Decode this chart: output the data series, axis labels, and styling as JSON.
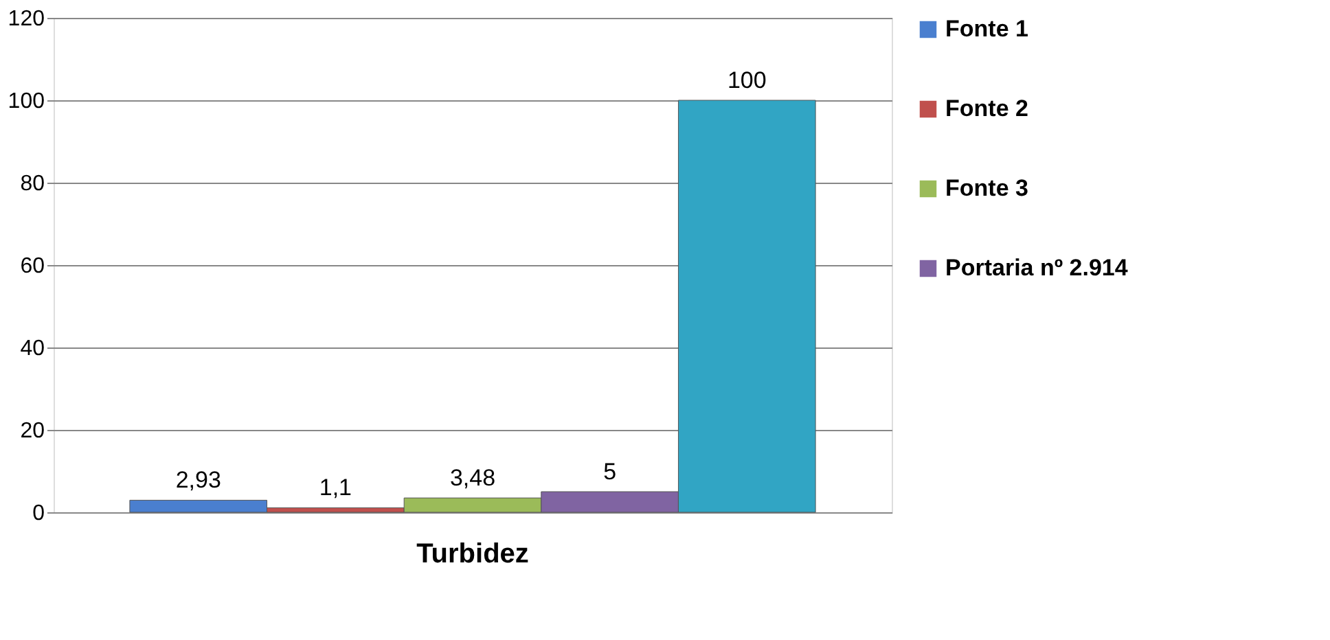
{
  "chart_data": {
    "type": "bar",
    "categories": [
      "Turbidez"
    ],
    "series": [
      {
        "name": "Fonte 1",
        "color": "#4a7fcf",
        "values": [
          2.93
        ],
        "value_labels": [
          "2,93"
        ]
      },
      {
        "name": "Fonte 2",
        "color": "#c0504d",
        "values": [
          1.1
        ],
        "value_labels": [
          "1,1"
        ]
      },
      {
        "name": "Fonte 3",
        "color": "#9bbb59",
        "values": [
          3.48
        ],
        "value_labels": [
          "3,48"
        ]
      },
      {
        "name": "Portaria  nº 2.914",
        "color": "#8064a2",
        "values": [
          5
        ],
        "value_labels": [
          "5"
        ]
      },
      {
        "color": "#31a5c4",
        "values": [
          100
        ],
        "value_labels": [
          "100"
        ]
      }
    ],
    "ylim": [
      0,
      120
    ],
    "yticks": [
      0,
      20,
      40,
      60,
      80,
      100,
      120
    ],
    "grid": "y",
    "legend": "right"
  }
}
